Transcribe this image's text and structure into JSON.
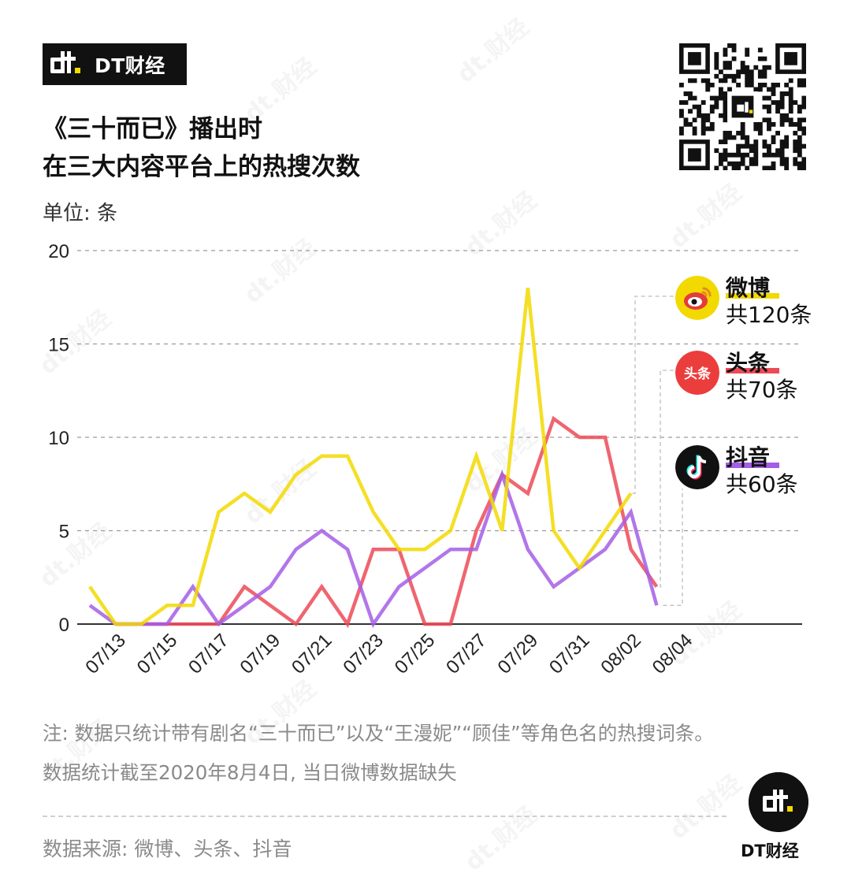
{
  "brand": {
    "name": "DT财经",
    "watermark": "dt.财经"
  },
  "title": {
    "line1": "《三十而已》播出时",
    "line2": "在三大内容平台上的热搜次数"
  },
  "unit_label": "单位: 条",
  "colors": {
    "weibo": "#f2d900",
    "toutiao": "#ec4a57",
    "douyin": "#a45ee5",
    "axis": "#333333",
    "grid": "#9a9a9a"
  },
  "legend": [
    {
      "key": "weibo",
      "name": "微博",
      "total": "共120条",
      "icon": "weibo-icon"
    },
    {
      "key": "toutiao",
      "name": "头条",
      "total": "共70条",
      "icon": "toutiao-icon",
      "icon_text": "头条"
    },
    {
      "key": "douyin",
      "name": "抖音",
      "total": "共60条",
      "icon": "douyin-icon"
    }
  ],
  "chart_data": {
    "type": "line",
    "x": [
      "07/12",
      "07/13",
      "07/14",
      "07/15",
      "07/16",
      "07/17",
      "07/18",
      "07/19",
      "07/20",
      "07/21",
      "07/22",
      "07/23",
      "07/24",
      "07/25",
      "07/26",
      "07/27",
      "07/28",
      "07/29",
      "07/30",
      "07/31",
      "08/01",
      "08/02",
      "08/03",
      "08/04"
    ],
    "x_tick_labels": [
      "07/13",
      "07/15",
      "07/17",
      "07/19",
      "07/21",
      "07/23",
      "07/25",
      "07/27",
      "07/29",
      "07/31",
      "08/02",
      "08/04"
    ],
    "yticks": [
      0,
      5,
      10,
      15,
      20
    ],
    "ylim": [
      0,
      20
    ],
    "grid": true,
    "series": [
      {
        "name": "微博",
        "key": "weibo",
        "values": [
          2,
          0,
          0,
          1,
          1,
          6,
          7,
          6,
          8,
          9,
          9,
          6,
          4,
          4,
          5,
          9,
          5,
          18,
          5,
          3,
          5,
          7,
          null,
          null
        ]
      },
      {
        "name": "头条",
        "key": "toutiao",
        "values": [
          null,
          0,
          0,
          0,
          0,
          0,
          2,
          1,
          0,
          2,
          0,
          4,
          4,
          0,
          0,
          5,
          8,
          7,
          11,
          10,
          10,
          4,
          2,
          null
        ]
      },
      {
        "name": "抖音",
        "key": "douyin",
        "values": [
          1,
          0,
          0,
          0,
          2,
          0,
          1,
          2,
          4,
          5,
          4,
          0,
          2,
          3,
          4,
          4,
          8,
          4,
          2,
          3,
          4,
          6,
          1,
          null
        ]
      }
    ]
  },
  "note": {
    "line1": "注: 数据只统计带有剧名“三十而已”以及“王漫妮”“顾佳”等角色名的热搜词条。",
    "line2": "数据统计截至2020年8月4日, 当日微博数据缺失"
  },
  "source": "数据来源: 微博、头条、抖音",
  "footer_brand": "DT财经"
}
